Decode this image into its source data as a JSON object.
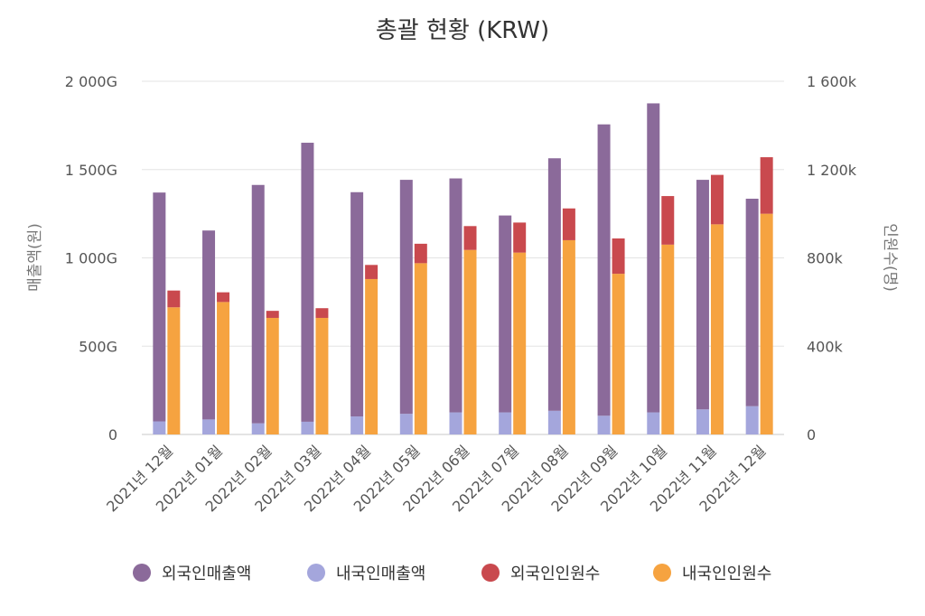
{
  "chart_data": {
    "type": "bar",
    "title": "총괄 현황 (KRW)",
    "categories": [
      "2021년 12월",
      "2022년 01월",
      "2022년 02월",
      "2022년 03월",
      "2022년 04월",
      "2022년 05월",
      "2022년 06월",
      "2022년 07월",
      "2022년 08월",
      "2022년 09월",
      "2022년 10월",
      "2022년 11월",
      "2022년 12월"
    ],
    "y_left": {
      "label": "매출액(원)",
      "range": [
        0,
        2000
      ],
      "ticks": [
        0,
        500,
        1000,
        1500,
        2000
      ],
      "tick_labels": [
        "0",
        "500G",
        "1 000G",
        "1 500G",
        "2 000G"
      ]
    },
    "y_right": {
      "label": "인원수(명)",
      "range": [
        0,
        1600
      ],
      "ticks": [
        0,
        400,
        800,
        1200,
        1600
      ],
      "tick_labels": [
        "0",
        "400k",
        "800k",
        "1 200k",
        "1 600k"
      ]
    },
    "series": [
      {
        "name": "외국인매출액",
        "axis": "left",
        "stack": "sales",
        "color": "#8b6a9a",
        "values": [
          1296,
          1070,
          1350,
          1580,
          1270,
          1325,
          1325,
          1115,
          1430,
          1650,
          1750,
          1300,
          1175
        ]
      },
      {
        "name": "내국인매출액",
        "axis": "left",
        "stack": "sales",
        "color": "#a4a6dc",
        "values": [
          74,
          85,
          63,
          72,
          102,
          117,
          125,
          125,
          134,
          106,
          125,
          142,
          160
        ]
      },
      {
        "name": "외국인인원수",
        "axis": "right",
        "stack": "people",
        "color": "#c9494e",
        "values": [
          76,
          44,
          32,
          44,
          64,
          88,
          108,
          136,
          144,
          160,
          220,
          224,
          256
        ]
      },
      {
        "name": "내국인인원수",
        "axis": "right",
        "stack": "people",
        "color": "#f6a340",
        "values": [
          576,
          600,
          528,
          528,
          704,
          776,
          836,
          824,
          880,
          728,
          860,
          952,
          1000
        ]
      }
    ],
    "grid": true,
    "legend": "bottom"
  }
}
